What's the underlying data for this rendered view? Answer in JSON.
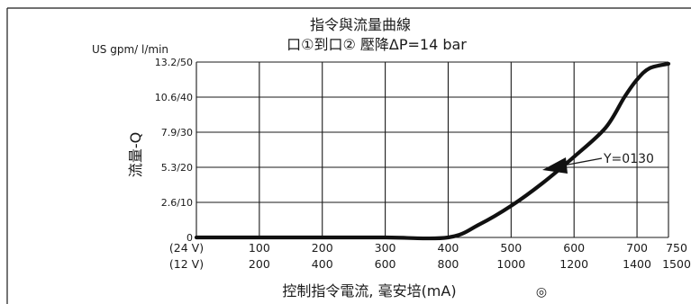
{
  "chart_data": {
    "type": "line",
    "title": "指令與流量曲線",
    "subtitle": "口①到口② 壓降ΔP=14 bar",
    "ylabel_units": "US gpm/ l/min",
    "ylabel": "流量-Q",
    "xlabel": "控制指令電流, 毫安培(mA)",
    "xlim": [
      0,
      750
    ],
    "ylim": [
      0,
      20
    ],
    "x_ticks_24v": [
      "(24 V)",
      "100",
      "200",
      "300",
      "400",
      "500",
      "600",
      "700",
      "750"
    ],
    "x_ticks_12v": [
      "(12 V)",
      "200",
      "400",
      "600",
      "800",
      "1000",
      "1200",
      "1400",
      "1500"
    ],
    "y_ticks": [
      "0",
      "2.6/10",
      "5.3/20",
      "7.9/30",
      "10.6/40",
      "13.2/50"
    ],
    "grid": true,
    "series": [
      {
        "name": "Y=0130",
        "x": [
          0,
          100,
          200,
          300,
          400,
          450,
          500,
          550,
          600,
          650,
          680,
          700,
          720,
          750
        ],
        "y": [
          0,
          0,
          0,
          0,
          0,
          1.5,
          3.6,
          6.2,
          9.2,
          12.5,
          16.0,
          18.0,
          19.3,
          19.8
        ]
      }
    ],
    "annotation": "Y=0130",
    "corner_symbol": "◎"
  }
}
